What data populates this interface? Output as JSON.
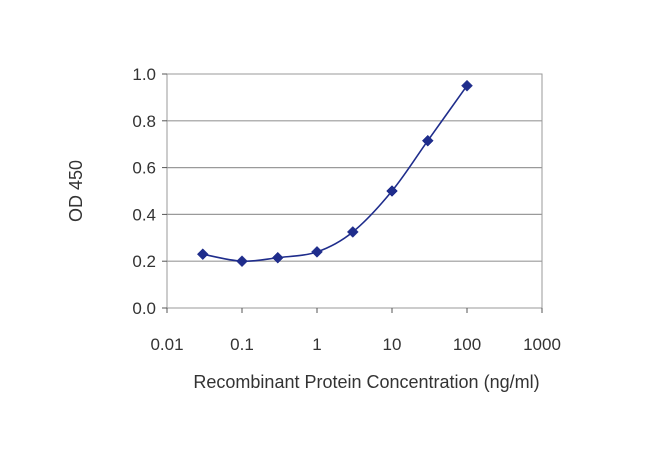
{
  "chart_data": {
    "type": "scatter",
    "xlabel": "Recombinant Protein Concentration (ng/ml)",
    "ylabel": "OD 450",
    "x_scale": "log",
    "xlim": [
      0.01,
      1000
    ],
    "ylim": [
      0.0,
      1.0
    ],
    "grid": "horizontal",
    "x_ticks": [
      "0.01",
      "0.1",
      "1",
      "10",
      "100",
      "1000"
    ],
    "y_ticks": [
      "0.0",
      "0.2",
      "0.4",
      "0.6",
      "0.8",
      "1.0"
    ],
    "series": [
      {
        "x": [
          0.03,
          0.1,
          0.3,
          1,
          3,
          10,
          30,
          100
        ],
        "y": [
          0.23,
          0.2,
          0.215,
          0.24,
          0.325,
          0.5,
          0.715,
          0.95
        ]
      }
    ],
    "colors": {
      "series": "#1f2d8c",
      "plot_frame": "#999999",
      "grid": "#9a9a9a"
    }
  }
}
